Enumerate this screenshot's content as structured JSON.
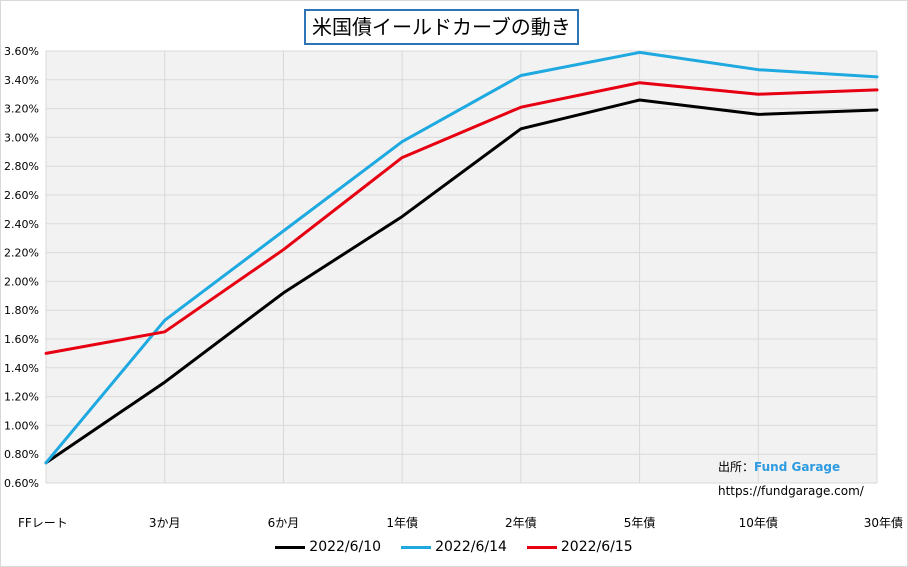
{
  "chart_data": {
    "type": "line",
    "title": "米国債イールドカーブの動き",
    "categories": [
      "FFレート",
      "3か月",
      "6か月",
      "1年債",
      "2年債",
      "5年債",
      "10年債",
      "30年債"
    ],
    "y_tick_labels": [
      "0.60%",
      "0.80%",
      "1.00%",
      "1.20%",
      "1.40%",
      "1.60%",
      "1.80%",
      "2.00%",
      "2.20%",
      "2.40%",
      "2.60%",
      "2.80%",
      "3.00%",
      "3.20%",
      "3.40%",
      "3.60%"
    ],
    "ylim": [
      0.6,
      3.6
    ],
    "y_unit": "%",
    "grid": true,
    "legend_position": "bottom",
    "series": [
      {
        "name": "2022/6/10",
        "color": "#000000",
        "values": [
          0.74,
          1.3,
          1.92,
          2.45,
          3.06,
          3.26,
          3.16,
          3.19
        ]
      },
      {
        "name": "2022/6/14",
        "color": "#1ea9e1",
        "values": [
          0.74,
          1.73,
          2.35,
          2.97,
          3.43,
          3.59,
          3.47,
          3.42
        ]
      },
      {
        "name": "2022/6/15",
        "color": "#e60012",
        "values": [
          1.5,
          1.65,
          2.22,
          2.86,
          3.21,
          3.38,
          3.3,
          3.33
        ]
      }
    ],
    "annotations": [
      {
        "label": "出所：",
        "name": "Fund Garage"
      },
      {
        "label": "https://fundgarage.com/"
      }
    ]
  }
}
